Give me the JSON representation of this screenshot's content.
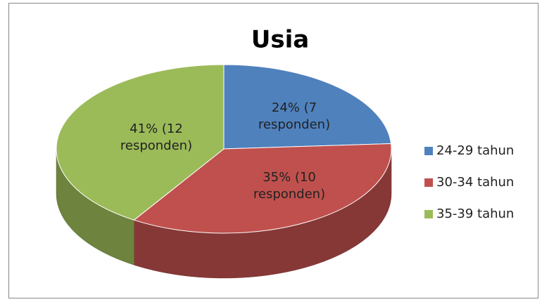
{
  "chart_data": {
    "type": "pie",
    "title": "Usia",
    "categories": [
      "24-29 tahun",
      "30-34 tahun",
      "35-39 tahun"
    ],
    "values": [
      24,
      35,
      41
    ],
    "value_labels": [
      "24% (7 responden)",
      "35% (10 responden)",
      "41% (12 responden)"
    ],
    "colors": [
      "#4f81bd",
      "#c0504d",
      "#9bbb59"
    ],
    "legend": "right"
  }
}
